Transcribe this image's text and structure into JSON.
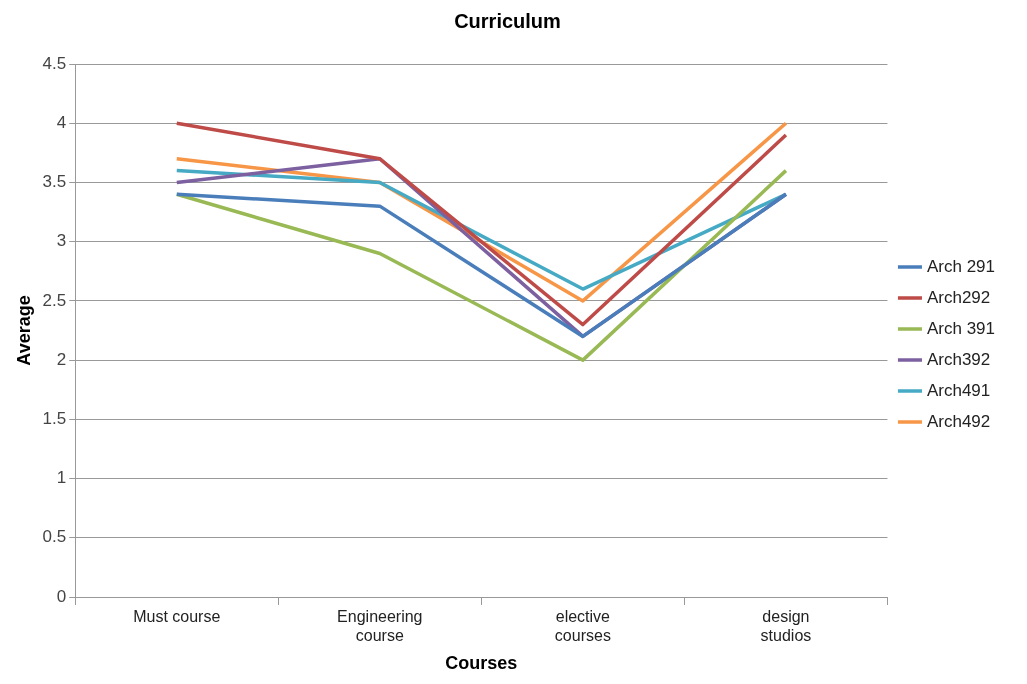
{
  "chart_data": {
    "type": "line",
    "title": "Curriculum",
    "xlabel": "Courses",
    "ylabel": "Average",
    "categories": [
      "Must course",
      "Engineering course",
      "elective courses",
      "design studios"
    ],
    "series": [
      {
        "name": "Arch 291",
        "color": "#4a7ebb",
        "values": [
          3.4,
          3.3,
          2.2,
          3.4
        ]
      },
      {
        "name": "Arch292",
        "color": "#be4b48",
        "values": [
          4.0,
          3.7,
          2.3,
          3.9
        ]
      },
      {
        "name": "Arch 391",
        "color": "#98b954",
        "values": [
          3.4,
          2.9,
          2.0,
          3.6
        ]
      },
      {
        "name": "Arch392",
        "color": "#7d60a0",
        "values": [
          3.5,
          3.7,
          2.2,
          3.4
        ]
      },
      {
        "name": "Arch491",
        "color": "#46aac5",
        "values": [
          3.6,
          3.5,
          2.6,
          3.4
        ]
      },
      {
        "name": "Arch492",
        "color": "#f79646",
        "values": [
          3.7,
          3.5,
          2.5,
          4.0
        ]
      }
    ],
    "ylim": [
      0,
      4.5
    ],
    "yticks": [
      0,
      0.5,
      1,
      1.5,
      2,
      2.5,
      3,
      3.5,
      4,
      4.5
    ],
    "grid": "y",
    "legend": "right",
    "marker": "none",
    "line_style": "solid"
  }
}
